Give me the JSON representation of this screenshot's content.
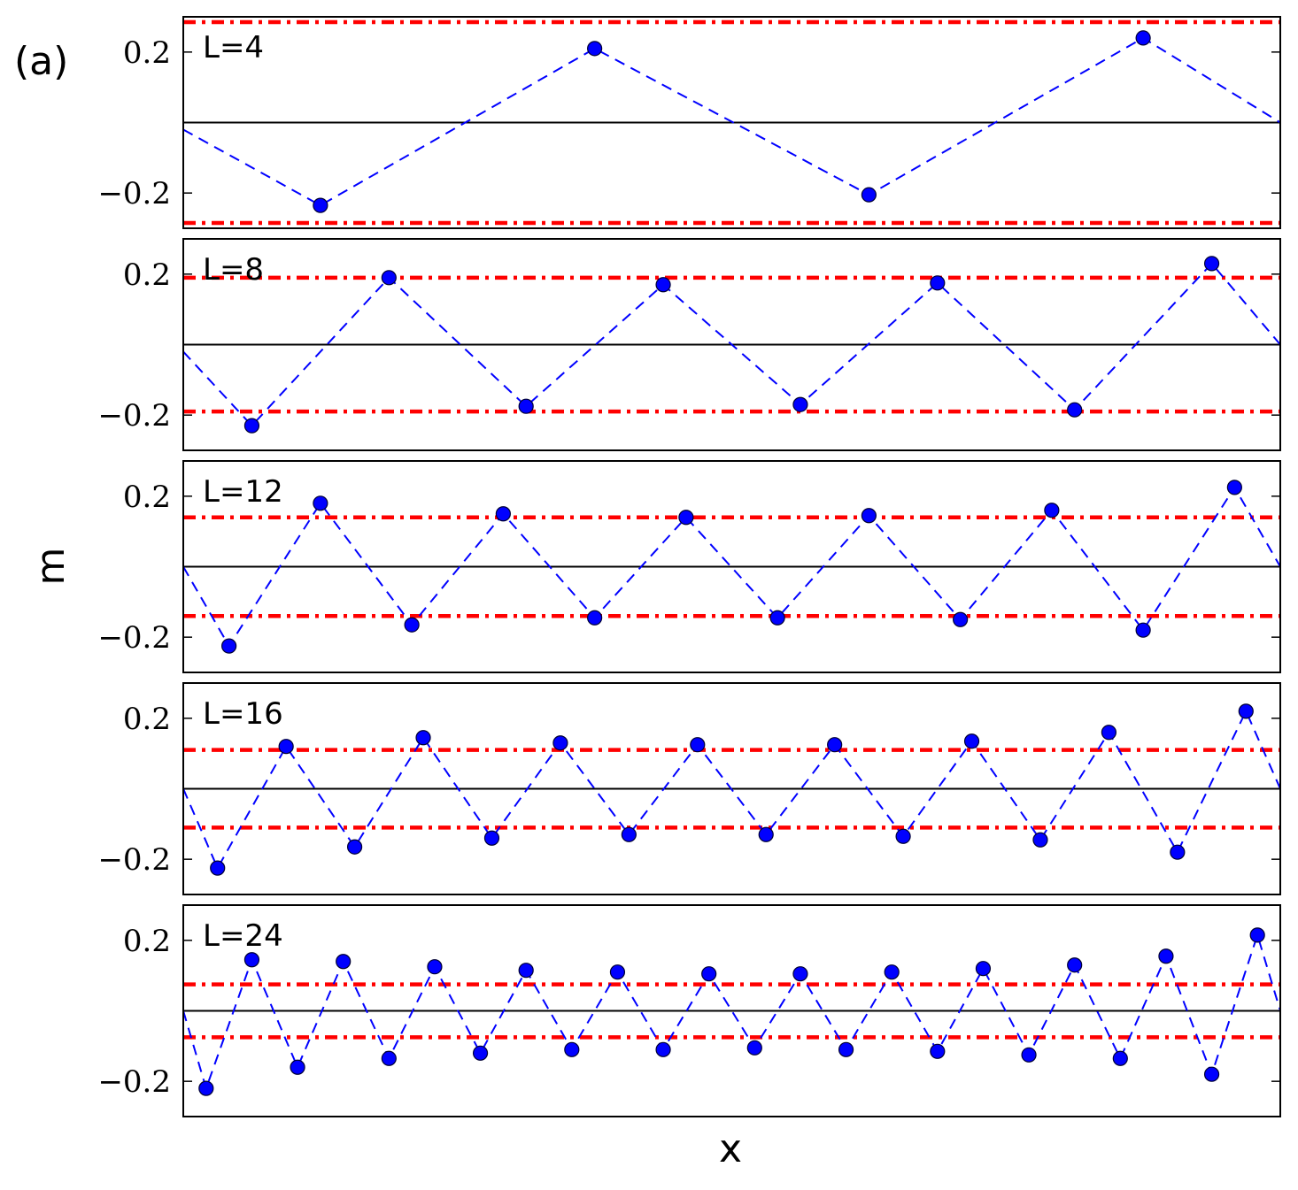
{
  "figure_label": "(a)",
  "xlabel": "x",
  "ylabel": "m",
  "colors": {
    "series_line": "#0000ff",
    "marker_fill": "#0000ff",
    "marker_edge": "#000033",
    "bound_line": "#ff0000",
    "zero_line": "#000000"
  },
  "chart_data": [
    {
      "type": "line",
      "label": "L=4",
      "ylim": [
        -0.3,
        0.3
      ],
      "yticks": [
        {
          "value": 0.2,
          "label": "0.2"
        },
        {
          "value": -0.2,
          "label": "−0.2"
        }
      ],
      "bound": 0.285,
      "line_endpoints": [
        [
          0.0,
          -0.02
        ],
        [
          24.0,
          0.0
        ]
      ],
      "x": [
        3,
        9,
        15,
        21
      ],
      "values": [
        -0.235,
        0.21,
        -0.205,
        0.24
      ]
    },
    {
      "type": "line",
      "label": "L=8",
      "ylim": [
        -0.3,
        0.3
      ],
      "yticks": [
        {
          "value": 0.2,
          "label": "0.2"
        },
        {
          "value": -0.2,
          "label": "−0.2"
        }
      ],
      "bound": 0.19,
      "line_endpoints": [
        [
          0.0,
          -0.02
        ],
        [
          24.0,
          0.0
        ]
      ],
      "x": [
        1.5,
        4.5,
        7.5,
        10.5,
        13.5,
        16.5,
        19.5,
        22.5
      ],
      "values": [
        -0.23,
        0.19,
        -0.175,
        0.17,
        -0.17,
        0.175,
        -0.185,
        0.23
      ]
    },
    {
      "type": "line",
      "label": "L=12",
      "ylim": [
        -0.3,
        0.3
      ],
      "yticks": [
        {
          "value": 0.2,
          "label": "0.2"
        },
        {
          "value": -0.2,
          "label": "−0.2"
        }
      ],
      "bound": 0.14,
      "line_endpoints": [
        [
          0.0,
          0.0
        ],
        [
          24.0,
          0.0
        ]
      ],
      "x": [
        1,
        3,
        5,
        7,
        9,
        11,
        13,
        15,
        17,
        19,
        21,
        23
      ],
      "values": [
        -0.225,
        0.18,
        -0.165,
        0.15,
        -0.145,
        0.14,
        -0.145,
        0.145,
        -0.15,
        0.16,
        -0.18,
        0.225
      ]
    },
    {
      "type": "line",
      "label": "L=16",
      "ylim": [
        -0.3,
        0.3
      ],
      "yticks": [
        {
          "value": 0.2,
          "label": "0.2"
        },
        {
          "value": -0.2,
          "label": "−0.2"
        }
      ],
      "bound": 0.11,
      "line_endpoints": [
        [
          0.0,
          0.0
        ],
        [
          24.0,
          0.0
        ]
      ],
      "x": [
        0.75,
        2.25,
        3.75,
        5.25,
        6.75,
        8.25,
        9.75,
        11.25,
        12.75,
        14.25,
        15.75,
        17.25,
        18.75,
        20.25,
        21.75,
        23.25
      ],
      "values": [
        -0.225,
        0.12,
        -0.165,
        0.145,
        -0.14,
        0.13,
        -0.13,
        0.125,
        -0.13,
        0.125,
        -0.135,
        0.135,
        -0.145,
        0.16,
        -0.18,
        0.22
      ]
    },
    {
      "type": "line",
      "label": "L=24",
      "ylim": [
        -0.3,
        0.3
      ],
      "yticks": [
        {
          "value": 0.2,
          "label": "0.2"
        },
        {
          "value": -0.2,
          "label": "−0.2"
        }
      ],
      "bound": 0.075,
      "line_endpoints": [
        [
          0.0,
          0.0
        ],
        [
          24.0,
          0.0
        ]
      ],
      "x": [
        0.5,
        1.5,
        2.5,
        3.5,
        4.5,
        5.5,
        6.5,
        7.5,
        8.5,
        9.5,
        10.5,
        11.5,
        12.5,
        13.5,
        14.5,
        15.5,
        16.5,
        17.5,
        18.5,
        19.5,
        20.5,
        21.5,
        22.5,
        23.5
      ],
      "values": [
        -0.22,
        0.145,
        -0.16,
        0.14,
        -0.135,
        0.125,
        -0.12,
        0.115,
        -0.11,
        0.11,
        -0.11,
        0.105,
        -0.105,
        0.105,
        -0.11,
        0.11,
        -0.115,
        0.12,
        -0.125,
        0.13,
        -0.135,
        0.155,
        -0.18,
        0.215
      ]
    }
  ]
}
